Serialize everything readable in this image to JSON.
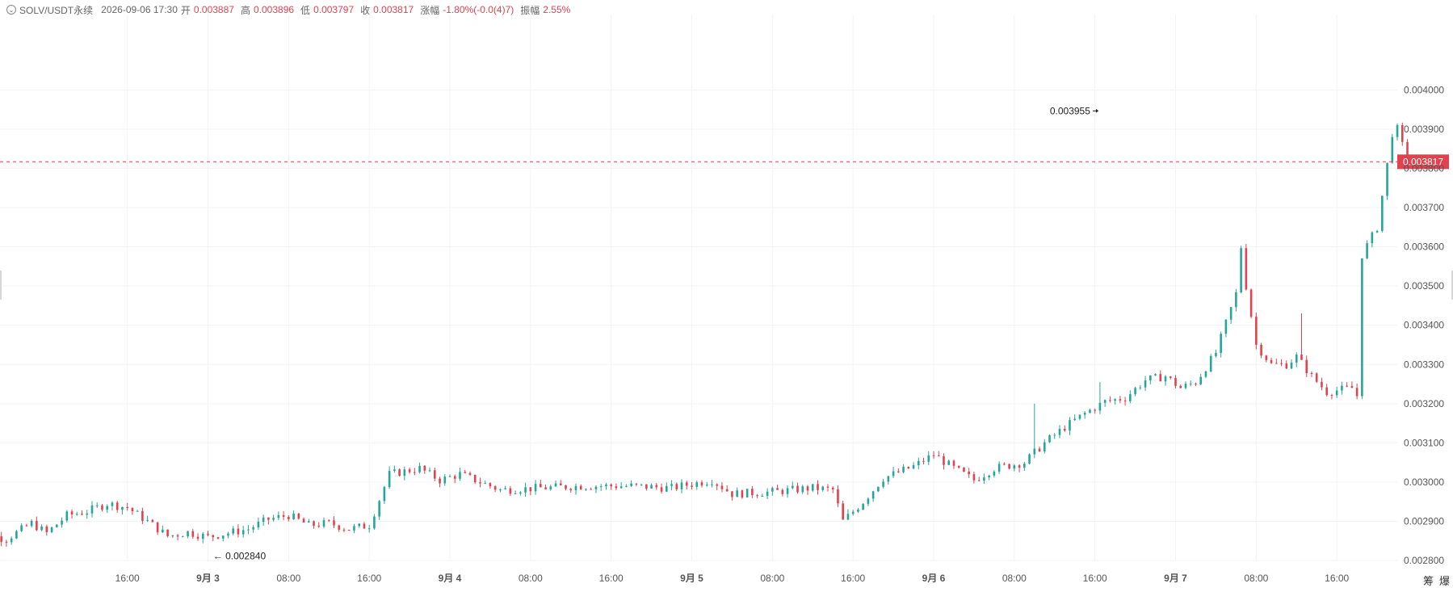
{
  "legend": {
    "symbol": "SOLV/USDT永续",
    "datetime": "2026-09-06 17:30",
    "open_label": "开",
    "open": "0.003887",
    "high_label": "高",
    "high": "0.003896",
    "low_label": "低",
    "low": "0.003797",
    "close_label": "收",
    "close": "0.003817",
    "change_label": "涨幅",
    "change": "-1.80%(-0.0(4)7)",
    "amplitude_label": "振幅",
    "amplitude": "2.55%"
  },
  "toolbar": {
    "chip_label": "筹",
    "burst_label": "爆"
  },
  "colors": {
    "up": "#26a69a",
    "down": "#e0434f",
    "grid": "#f2f3f5",
    "axis_text": "#555555",
    "price_line": "#e0434f"
  },
  "chart_data": {
    "type": "candlestick",
    "interval": "30m",
    "x_tick_labels": [
      "16:00",
      "9月 3",
      "08:00",
      "16:00",
      "9月 4",
      "08:00",
      "16:00",
      "9月 5",
      "08:00",
      "16:00",
      "9月 6",
      "08:00",
      "16:00",
      "9月 7",
      "08:00",
      "16:00"
    ],
    "y_tick_labels": [
      "0.002800",
      "0.002900",
      "0.003000",
      "0.003100",
      "0.003200",
      "0.003300",
      "0.003400",
      "0.003500",
      "0.003600",
      "0.003700",
      "0.003800",
      "0.003900",
      "0.004000"
    ],
    "ylim": [
      0.0028,
      0.004
    ],
    "last_price": 0.003817,
    "last_price_label": "0.003817",
    "annotations": [
      {
        "label": "0.003955",
        "time": "9月6 16:30",
        "value": 0.003955
      },
      {
        "label": "← 0.002840",
        "time": "9月3 00:30",
        "value": 0.00284
      }
    ],
    "close_path": [
      [
        "9月2 00:00",
        0.002876
      ],
      [
        "9月2 04:00",
        0.002855
      ],
      [
        "9月2 06:30",
        0.002895
      ],
      [
        "9月2 08:00",
        0.00287
      ],
      [
        "9月2 10:00",
        0.002915
      ],
      [
        "9月2 12:00",
        0.002925
      ],
      [
        "9月2 14:00",
        0.002945
      ],
      [
        "9月2 16:00",
        0.002935
      ],
      [
        "9月2 18:00",
        0.0029
      ],
      [
        "9月2 20:00",
        0.002862
      ],
      [
        "9月2 22:00",
        0.002872
      ],
      [
        "9月3 00:00",
        0.00286
      ],
      [
        "9月3 04:00",
        0.00288
      ],
      [
        "9月3 06:00",
        0.002905
      ],
      [
        "9月3 08:00",
        0.002915
      ],
      [
        "9月3 10:00",
        0.00289
      ],
      [
        "9月3 12:00",
        0.002895
      ],
      [
        "9月3 14:00",
        0.00288
      ],
      [
        "9月3 16:00",
        0.00289
      ],
      [
        "9月3 18:00",
        0.00302
      ],
      [
        "9月3 21:00",
        0.003035
      ],
      [
        "9月3 23:00",
        0.003005
      ],
      [
        "9月4 01:00",
        0.00302
      ],
      [
        "9月4 05:00",
        0.00298
      ],
      [
        "9月4 09:00",
        0.002985
      ],
      [
        "9月4 13:00",
        0.00299
      ],
      [
        "9月4 18:00",
        0.00299
      ],
      [
        "9月4 22:00",
        0.002985
      ],
      [
        "9月5 02:00",
        0.003005
      ],
      [
        "9月5 04:00",
        0.00297
      ],
      [
        "9月5 08:00",
        0.002975
      ],
      [
        "9月5 12:00",
        0.002985
      ],
      [
        "9月5 14:00",
        0.00298
      ],
      [
        "9月5 15:00",
        0.0029
      ],
      [
        "9月5 17:00",
        0.00295
      ],
      [
        "9月5 19:00",
        0.00301
      ],
      [
        "9月5 22:00",
        0.00304
      ],
      [
        "9月6 00:00",
        0.00307
      ],
      [
        "9月6 02:00",
        0.003035
      ],
      [
        "9月6 04:00",
        0.003005
      ],
      [
        "9月6 06:00",
        0.003035
      ],
      [
        "9月6 09:00",
        0.00305
      ],
      [
        "9月6 11:00",
        0.0031
      ],
      [
        "9月6 13:00",
        0.00314
      ],
      [
        "9月6 15:00",
        0.003175
      ],
      [
        "9月6 17:00",
        0.003205
      ],
      [
        "9月6 19:00",
        0.003215
      ],
      [
        "9月6 21:00",
        0.00326
      ],
      [
        "9月6 23:00",
        0.00327
      ],
      [
        "9月7 00:30",
        0.00324
      ],
      [
        "9月7 02:00",
        0.003255
      ],
      [
        "9月7 04:00",
        0.00333
      ],
      [
        "9月7 06:00",
        0.00348
      ],
      [
        "9月7 06:30",
        0.0036
      ],
      [
        "9月7 07:00",
        0.0035
      ],
      [
        "9月7 08:00",
        0.00335
      ],
      [
        "9月7 09:30",
        0.0033
      ],
      [
        "9月7 11:00",
        0.0033
      ],
      [
        "9月7 12:00",
        0.00332
      ],
      [
        "9月7 13:30",
        0.00327
      ],
      [
        "9月7 15:00",
        0.00323
      ],
      [
        "9月7 17:30",
        0.00324
      ],
      [
        "9月7 18:00",
        0.00322
      ],
      [
        "9月7 18:30",
        0.00358
      ],
      [
        "9月7 20:00",
        0.00365
      ],
      [
        "9月7 21:30",
        0.00389
      ],
      [
        "9月7 22:00",
        0.0039
      ],
      [
        "9月7 23:00",
        0.003817
      ]
    ],
    "wick_spikes": [
      [
        "9月7 12:30",
        0.00343
      ],
      [
        "9月6 10:00",
        0.0032
      ],
      [
        "9月6 16:30",
        0.003255
      ]
    ]
  }
}
